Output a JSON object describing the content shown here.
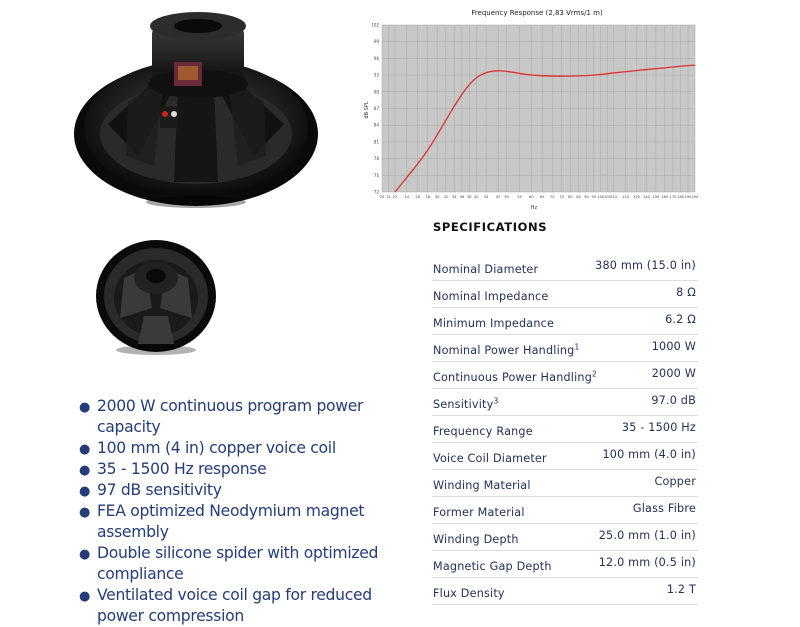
{
  "colors": {
    "text": "#243058",
    "feature_text": "#243d78",
    "curve": "#e03030",
    "plot_bg": "#c8c8c8",
    "grid": "#a8a8a8"
  },
  "images": {
    "main": "speaker-rear-view-icon",
    "small": "speaker-rear-view-small-icon"
  },
  "specs": {
    "heading": "SPECIFICATIONS",
    "rows": [
      {
        "label": "Nominal Diameter",
        "sup": "",
        "value": "380 mm (15.0 in)"
      },
      {
        "label": "Nominal Impedance",
        "sup": "",
        "value": "8 Ω"
      },
      {
        "label": "Minimum Impedance",
        "sup": "",
        "value": "6.2 Ω"
      },
      {
        "label": "Nominal Power Handling",
        "sup": "1",
        "value": "1000 W"
      },
      {
        "label": "Continuous Power Handling",
        "sup": "2",
        "value": "2000 W"
      },
      {
        "label": "Sensitivity",
        "sup": "3",
        "value": "97.0 dB"
      },
      {
        "label": "Frequency Range",
        "sup": "",
        "value": "35 - 1500 Hz"
      },
      {
        "label": "Voice Coil Diameter",
        "sup": "",
        "value": "100 mm (4.0 in)"
      },
      {
        "label": "Winding Material",
        "sup": "",
        "value": "Copper"
      },
      {
        "label": "Former Material",
        "sup": "",
        "value": "Glass Fibre"
      },
      {
        "label": "Winding Depth",
        "sup": "",
        "value": "25.0 mm (1.0 in)"
      },
      {
        "label": "Magnetic Gap Depth",
        "sup": "",
        "value": "12.0 mm (0.5 in)"
      },
      {
        "label": "Flux Density",
        "sup": "",
        "value": "1.2 T"
      }
    ]
  },
  "features": [
    "2000 W continuous program power capacity",
    "100 mm (4 in) copper voice coil",
    "35 - 1500 Hz response",
    "97 dB sensitivity",
    "FEA optimized Neodymium magnet assembly",
    "Double silicone spider with optimized compliance",
    "Ventilated voice coil gap for reduced power compression"
  ],
  "chart_data": {
    "type": "line",
    "title": "Frequency Response (2,83 Vrms/1 m)",
    "xlabel": "Hz",
    "ylabel": "dB SPL",
    "x_scale": "log",
    "xlim": [
      20,
      200
    ],
    "ylim": [
      72,
      102
    ],
    "grid": true,
    "x_ticks": [
      "20",
      "21",
      "22",
      "24",
      "26",
      "28",
      "30",
      "32",
      "34",
      "36",
      "38",
      "40",
      "43",
      "47",
      "50",
      "55",
      "60",
      "65",
      "70",
      "75",
      "80",
      "85",
      "90",
      "95",
      "100",
      "105",
      "110",
      "120",
      "130",
      "140",
      "150",
      "160",
      "170",
      "180",
      "190",
      "200"
    ],
    "y_ticks": [
      "72",
      "75",
      "78",
      "81",
      "84",
      "87",
      "90",
      "93",
      "96",
      "99",
      "102"
    ],
    "series": [
      {
        "color": "#e03030",
        "x": [
          22,
          25,
          28,
          31,
          34,
          37,
          40,
          43,
          46,
          50,
          55,
          60,
          70,
          80,
          90,
          100,
          110,
          120,
          140,
          160,
          180,
          200
        ],
        "y": [
          72.0,
          75.8,
          79.4,
          83.6,
          87.4,
          90.6,
          92.6,
          93.5,
          93.8,
          93.7,
          93.3,
          93.0,
          92.8,
          92.8,
          92.9,
          93.1,
          93.4,
          93.6,
          94.0,
          94.3,
          94.6,
          94.8
        ]
      }
    ]
  }
}
